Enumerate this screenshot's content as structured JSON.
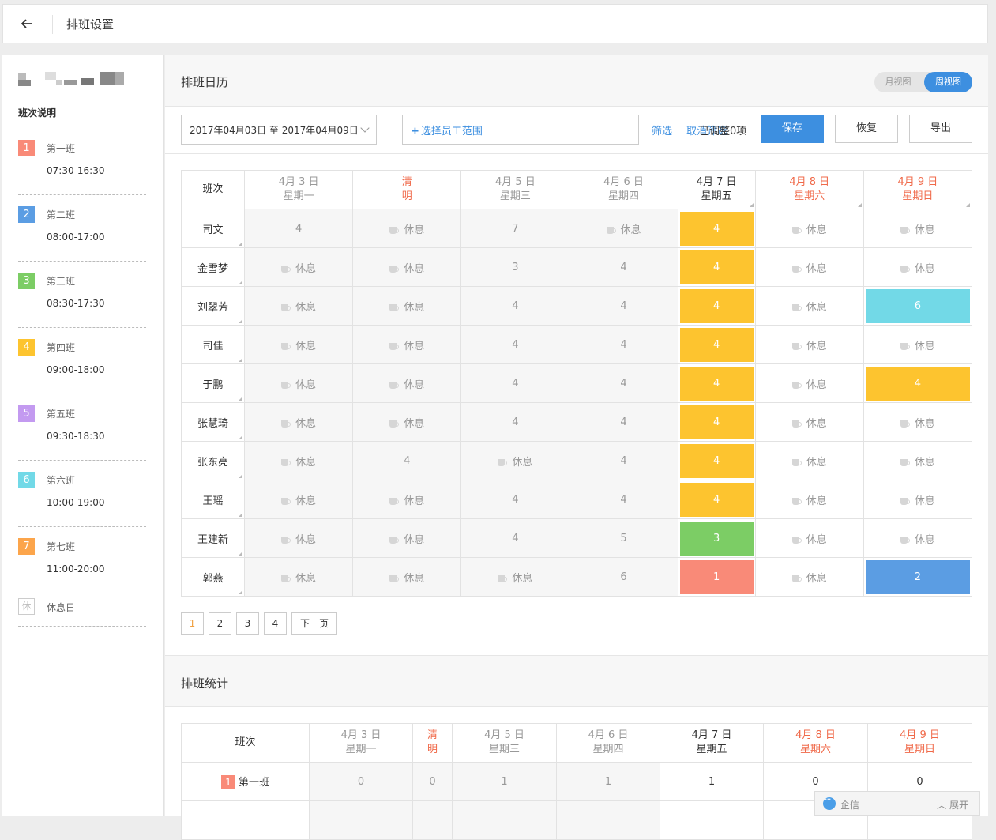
{
  "header": {
    "title": "排班设置",
    "back_icon": "arrow-left-icon"
  },
  "sidebar": {
    "legend_title": "班次说明",
    "shifts": [
      {
        "num": "1",
        "name": "第一班",
        "time": "07:30-16:30",
        "color": "#f98a78"
      },
      {
        "num": "2",
        "name": "第二班",
        "time": "08:00-17:00",
        "color": "#5b9de3"
      },
      {
        "num": "3",
        "name": "第三班",
        "time": "08:30-17:30",
        "color": "#7ccd65"
      },
      {
        "num": "4",
        "name": "第四班",
        "time": "09:00-18:00",
        "color": "#fdc42f"
      },
      {
        "num": "5",
        "name": "第五班",
        "time": "09:30-18:30",
        "color": "#c39af0"
      },
      {
        "num": "6",
        "name": "第六班",
        "time": "10:00-19:00",
        "color": "#72d9e7"
      },
      {
        "num": "7",
        "name": "第七班",
        "time": "11:00-20:00",
        "color": "#fca54b"
      }
    ],
    "rest": {
      "badge": "休",
      "name": "休息日"
    }
  },
  "calendar": {
    "title": "排班日历",
    "view_month": "月视图",
    "view_week": "周视图",
    "date_range": "2017年04月03日 至 2017年04月09日",
    "staff_select": "选择员工范围",
    "filter": "筛选",
    "cancel_filter": "取消筛选",
    "adjusted": "已调整0项",
    "save": "保存",
    "restore": "恢复",
    "export": "导出",
    "col_header": "班次",
    "days": [
      {
        "date": "4月 3 日",
        "week": "星期一",
        "style": "normal"
      },
      {
        "date": "清",
        "week": "明",
        "style": "red"
      },
      {
        "date": "4月 5 日",
        "week": "星期三",
        "style": "normal"
      },
      {
        "date": "4月 6 日",
        "week": "星期四",
        "style": "normal"
      },
      {
        "date": "4月 7 日",
        "week": "星期五",
        "style": "today"
      },
      {
        "date": "4月 8 日",
        "week": "星期六",
        "style": "red"
      },
      {
        "date": "4月 9 日",
        "week": "星期日",
        "style": "red"
      }
    ],
    "rest_label": "休息",
    "rows": [
      {
        "name": "司文",
        "cells": [
          "4",
          "R",
          "7",
          "R",
          "4",
          "R",
          "R"
        ]
      },
      {
        "name": "金雪梦",
        "cells": [
          "R",
          "R",
          "3",
          "4",
          "4",
          "R",
          "R"
        ]
      },
      {
        "name": "刘翠芳",
        "cells": [
          "R",
          "R",
          "4",
          "4",
          "4",
          "R",
          "6"
        ]
      },
      {
        "name": "司佳",
        "cells": [
          "R",
          "R",
          "4",
          "4",
          "4",
          "R",
          "R"
        ]
      },
      {
        "name": "于鹏",
        "cells": [
          "R",
          "R",
          "4",
          "4",
          "4",
          "R",
          "4"
        ]
      },
      {
        "name": "张慧琦",
        "cells": [
          "R",
          "R",
          "4",
          "4",
          "4",
          "R",
          "R"
        ]
      },
      {
        "name": "张东亮",
        "cells": [
          "R",
          "4",
          "R",
          "4",
          "4",
          "R",
          "R"
        ]
      },
      {
        "name": "王瑶",
        "cells": [
          "R",
          "R",
          "4",
          "4",
          "4",
          "R",
          "R"
        ]
      },
      {
        "name": "王建新",
        "cells": [
          "R",
          "R",
          "4",
          "5",
          "3",
          "R",
          "R"
        ]
      },
      {
        "name": "郭燕",
        "cells": [
          "R",
          "R",
          "R",
          "6",
          "1",
          "R",
          "2"
        ]
      }
    ],
    "pages": [
      "1",
      "2",
      "3",
      "4"
    ],
    "next_page": "下一页"
  },
  "stats": {
    "title": "排班统计",
    "col_header": "班次",
    "rows": [
      {
        "num": "1",
        "name": "第一班",
        "values": [
          "0",
          "0",
          "1",
          "1",
          "1",
          "0",
          "0"
        ]
      }
    ]
  },
  "chat": {
    "label": "企信",
    "expand": "展开"
  }
}
